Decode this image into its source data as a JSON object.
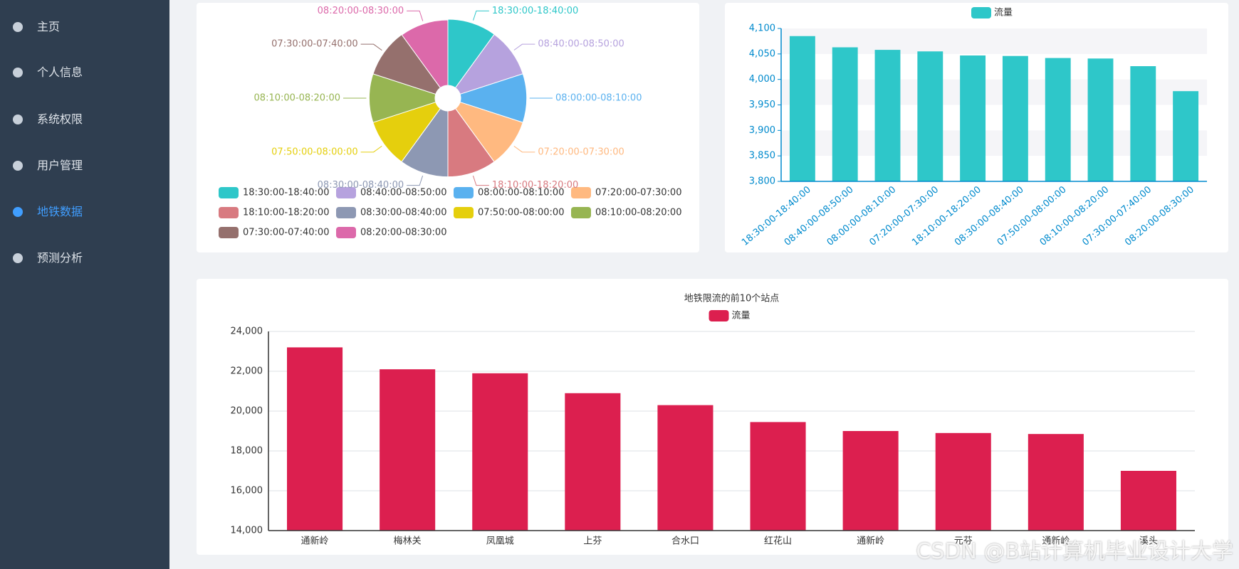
{
  "sidebar": {
    "items": [
      "主页",
      "个人信息",
      "系统权限",
      "用户管理",
      "地铁数据",
      "预测分析"
    ]
  },
  "watermark": "CSDN @B站计算机毕业设计大学",
  "chart_data": [
    {
      "type": "pie",
      "rose_type": "area",
      "categories": [
        "18:30:00-18:40:00",
        "08:40:00-08:50:00",
        "08:00:00-08:10:00",
        "07:20:00-07:30:00",
        "18:10:00-18:20:00",
        "08:30:00-08:40:00",
        "07:50:00-08:00:00",
        "08:10:00-08:20:00",
        "07:30:00-07:40:00",
        "08:20:00-08:30:00"
      ],
      "values": [
        4085,
        4063,
        4058,
        4055,
        4047,
        4046,
        4042,
        4041,
        4026,
        3977
      ],
      "colors": [
        "#2ec7c9",
        "#b6a2de",
        "#5ab1ef",
        "#ffb980",
        "#d87a80",
        "#8d98b3",
        "#e5cf0d",
        "#97b552",
        "#95706d",
        "#dc69aa"
      ]
    },
    {
      "type": "bar",
      "split_area": true,
      "categories": [
        "18:30:00-18:40:00",
        "08:40:00-08:50:00",
        "08:00:00-08:10:00",
        "07:20:00-07:30:00",
        "18:10:00-18:20:00",
        "08:30:00-08:40:00",
        "07:50:00-08:00:00",
        "08:10:00-08:20:00",
        "07:30:00-07:40:00",
        "08:20:00-08:30:00"
      ],
      "series": [
        {
          "name": "流量",
          "color": "#2ec7c9",
          "values": [
            4085,
            4063,
            4058,
            4055,
            4047,
            4046,
            4042,
            4041,
            4026,
            3977
          ]
        }
      ],
      "ylim": [
        3800,
        4100
      ],
      "yticks": [
        {
          "value": 3800,
          "label": "3,800"
        },
        {
          "value": 3850,
          "label": "3,850"
        },
        {
          "value": 3900,
          "label": "3,900"
        },
        {
          "value": 3950,
          "label": "3,950"
        },
        {
          "value": 4000,
          "label": "4,000"
        },
        {
          "value": 4050,
          "label": "4,050"
        },
        {
          "value": 4100,
          "label": "4,100"
        }
      ]
    },
    {
      "type": "bar",
      "title": "地铁限流的前10个站点",
      "grid": true,
      "categories": [
        "通新岭",
        "梅林关",
        "凤凰城",
        "上芬",
        "合水口",
        "红花山",
        "通新岭",
        "元芬",
        "通新岭",
        "溪头"
      ],
      "series": [
        {
          "name": "流量",
          "color": "#dc1f4f",
          "values": [
            23200,
            22100,
            21900,
            20900,
            20300,
            19450,
            19000,
            18900,
            18850,
            17000
          ]
        }
      ],
      "ylim": [
        14000,
        24000
      ],
      "yticks": [
        {
          "value": 14000,
          "label": "14,000"
        },
        {
          "value": 16000,
          "label": "16,000"
        },
        {
          "value": 18000,
          "label": "18,000"
        },
        {
          "value": 20000,
          "label": "20,000"
        },
        {
          "value": 22000,
          "label": "22,000"
        },
        {
          "value": 24000,
          "label": "24,000"
        }
      ]
    }
  ]
}
